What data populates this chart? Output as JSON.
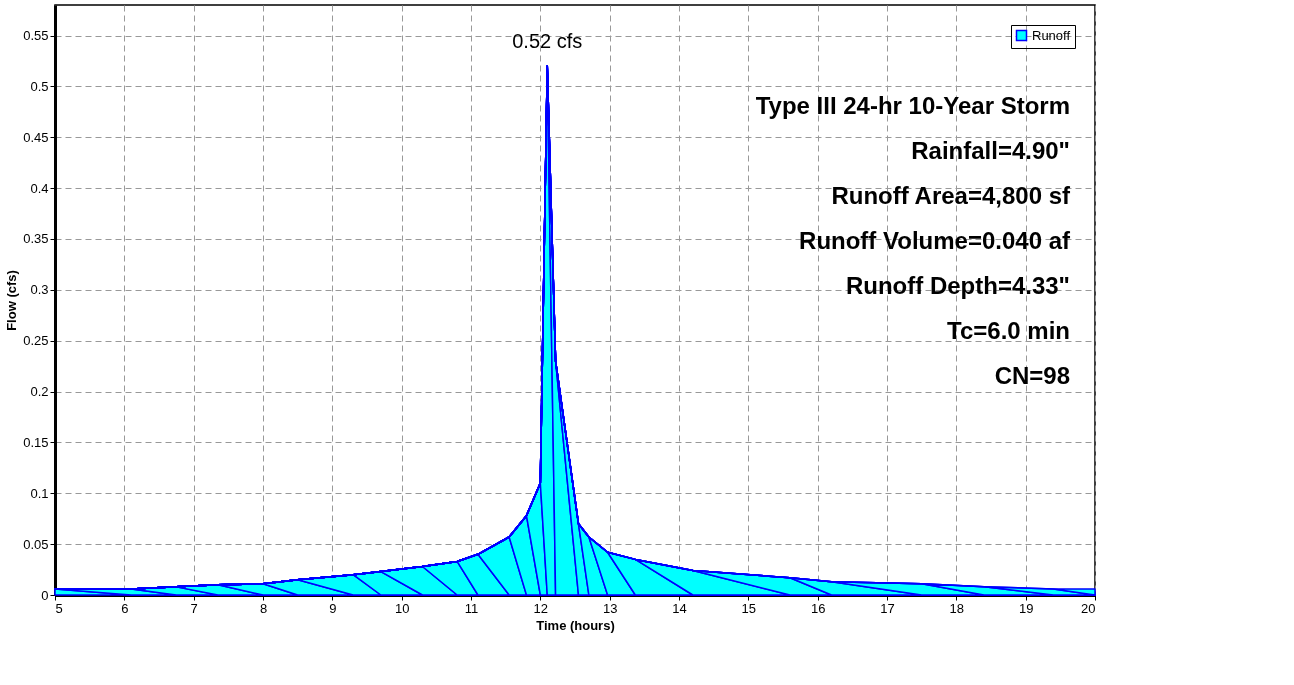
{
  "chart_data": {
    "type": "area",
    "xlabel": "Time  (hours)",
    "ylabel": "Flow  (cfs)",
    "x": [
      5,
      6.1,
      6.75,
      7.35,
      8,
      8.5,
      9.3,
      9.7,
      10.3,
      10.8,
      11.1,
      11.55,
      11.8,
      12.0,
      12.1,
      12.22,
      12.55,
      12.7,
      12.97,
      13.37,
      14.2,
      15.6,
      16.2,
      17.5,
      18.4,
      19.4,
      20
    ],
    "series": [
      {
        "name": "Runoff",
        "color": "#00ffff",
        "values": [
          0.006,
          0.006,
          0.008,
          0.01,
          0.011,
          0.015,
          0.02,
          0.023,
          0.028,
          0.033,
          0.04,
          0.057,
          0.078,
          0.11,
          0.52,
          0.23,
          0.07,
          0.057,
          0.042,
          0.035,
          0.024,
          0.017,
          0.013,
          0.011,
          0.008,
          0.006,
          0.006
        ]
      }
    ],
    "xlim": [
      5,
      20
    ],
    "xticks": [
      5,
      6,
      7,
      8,
      9,
      10,
      11,
      12,
      13,
      14,
      15,
      16,
      17,
      18,
      19,
      20
    ],
    "ylim": [
      0,
      0.58
    ],
    "yticks": [
      0,
      0.05,
      0.1,
      0.15,
      0.2,
      0.25,
      0.3,
      0.35,
      0.4,
      0.45,
      0.5,
      0.55
    ],
    "grid": true,
    "legend": "top right",
    "annotations": [
      {
        "text": "0.52 cfs",
        "x": 12.1,
        "y": 0.52
      },
      "Type III 24-hr 10-Year Storm",
      "Rainfall=4.90\"",
      "Runoff Area=4,800 sf",
      "Runoff Volume=0.040 af",
      "Runoff Depth=4.33\"",
      "Tc=6.0 min",
      "CN=98"
    ]
  }
}
